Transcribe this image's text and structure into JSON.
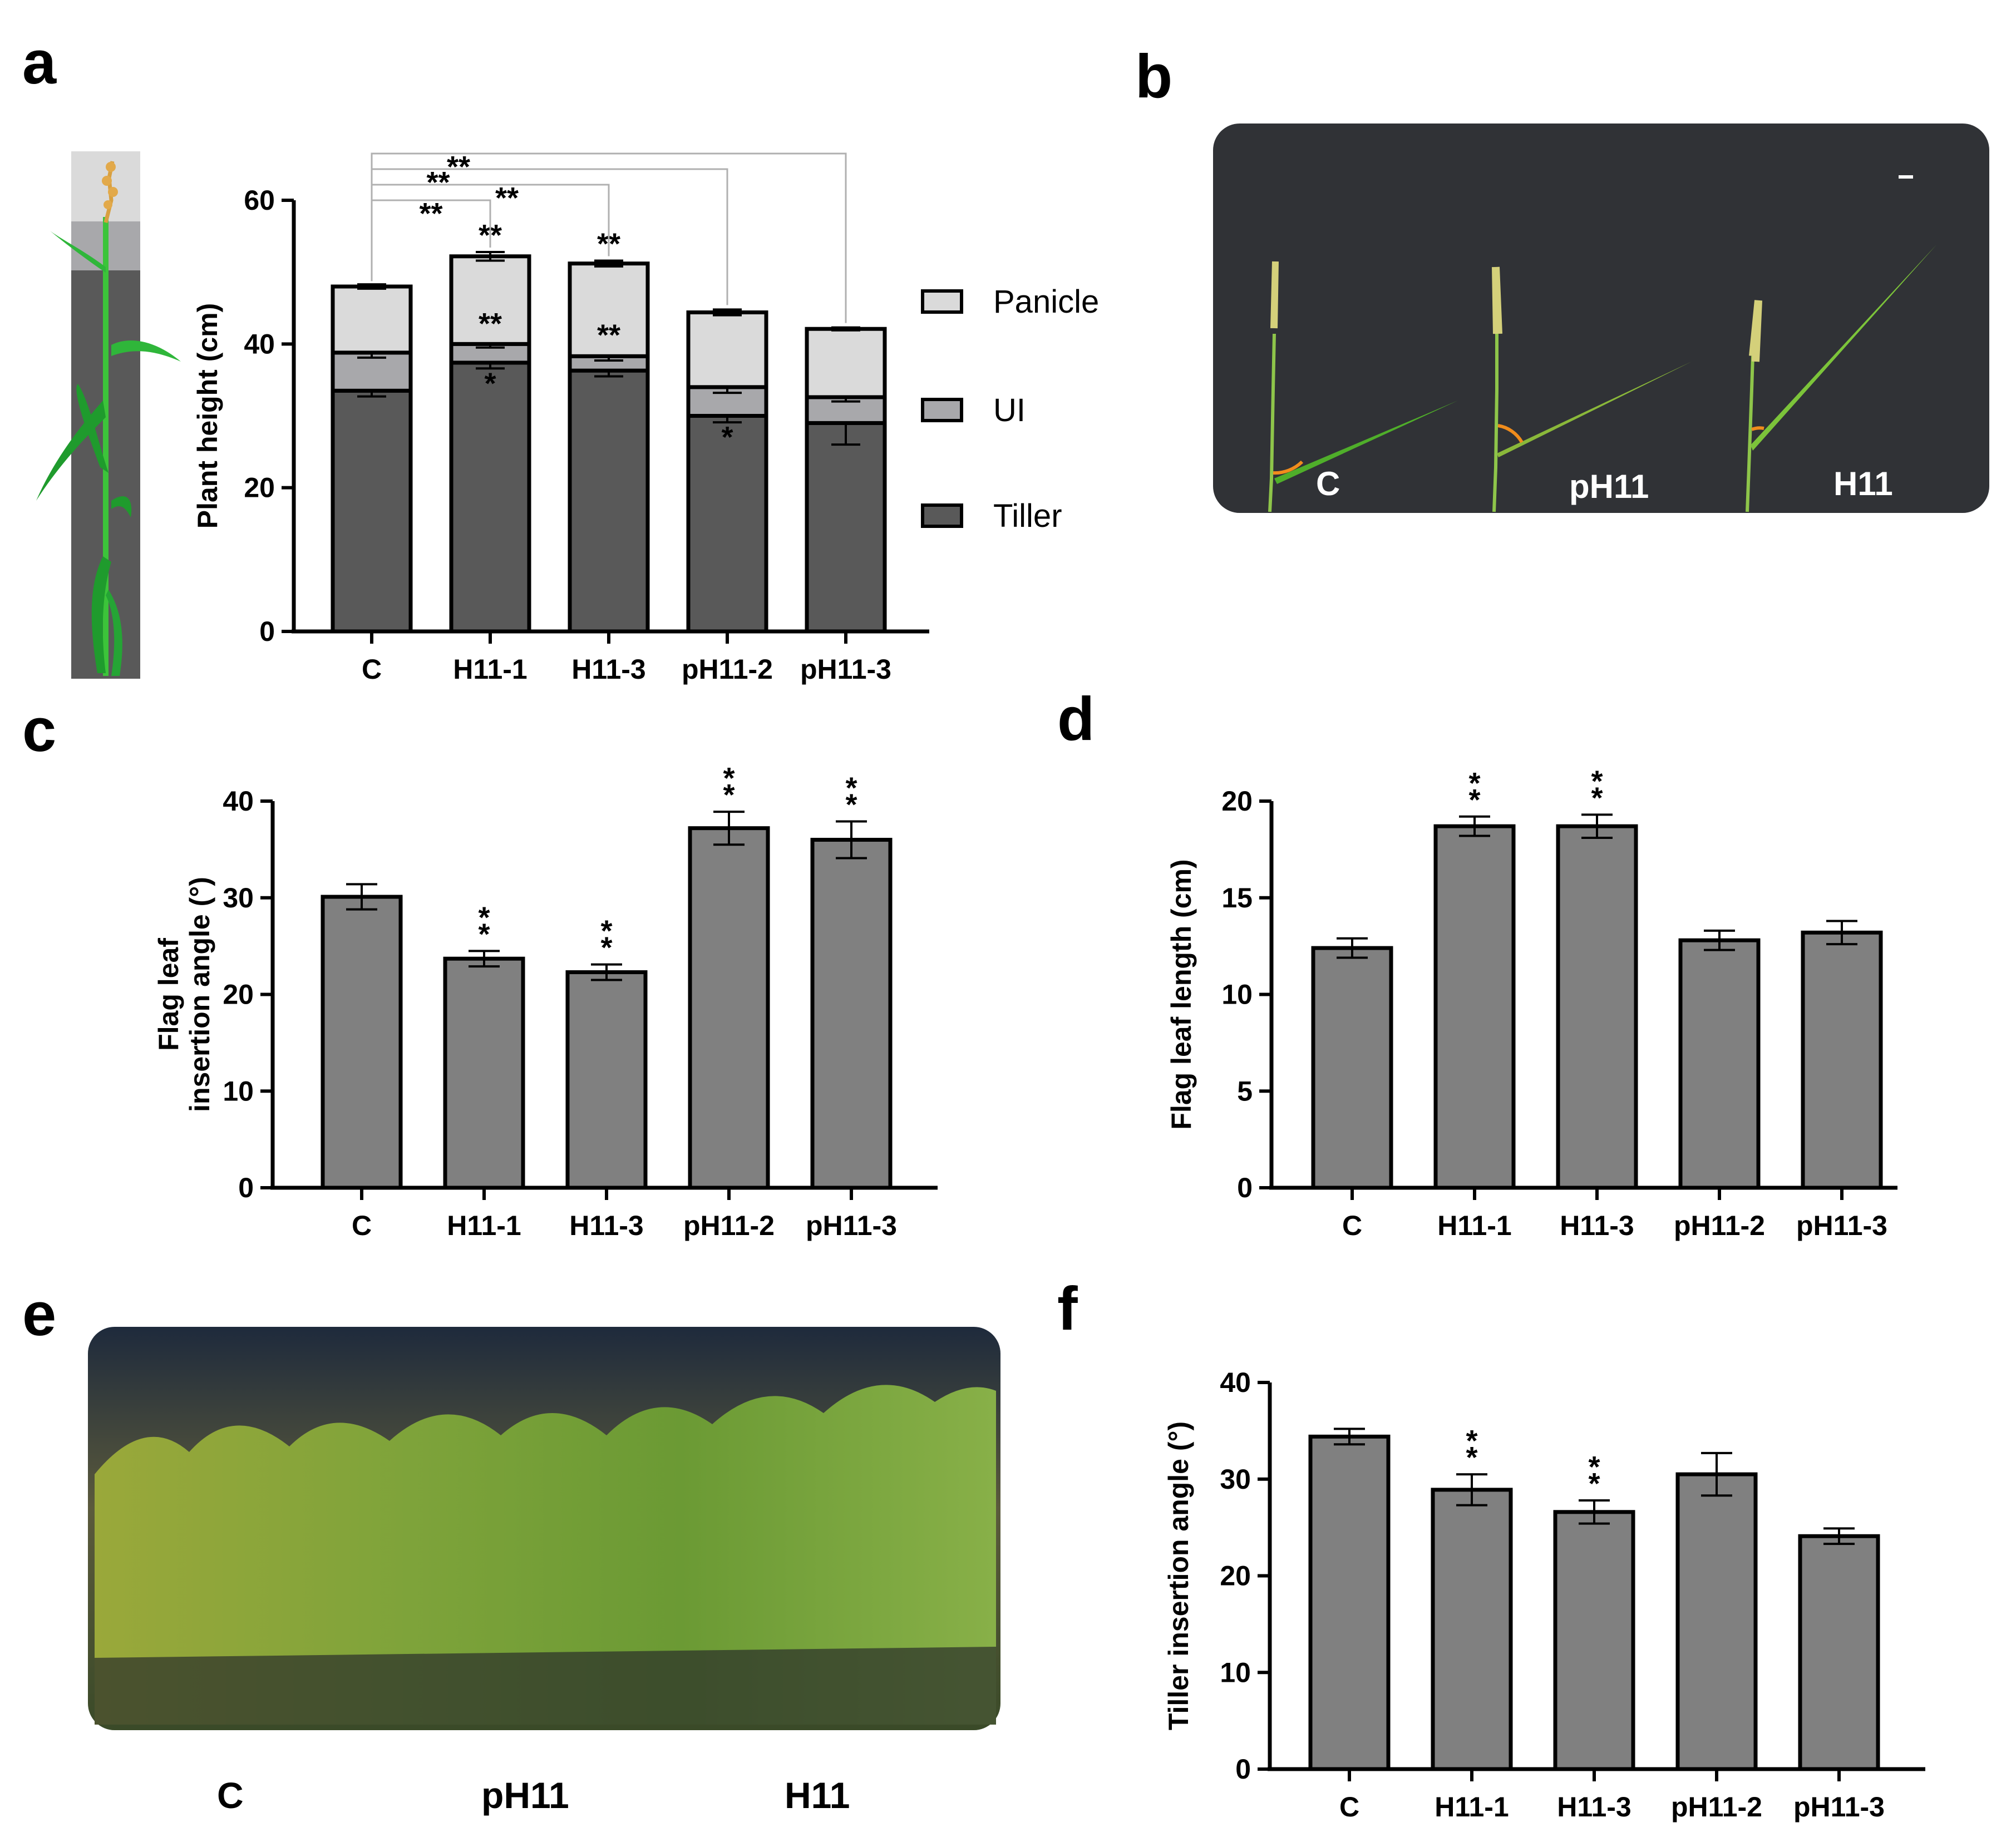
{
  "panels": {
    "a": "a",
    "b": "b",
    "c": "c",
    "d": "d",
    "e": "e",
    "f": "f"
  },
  "colors": {
    "tiller": "#595959",
    "ui": "#a8a8ab",
    "panicle": "#dadada",
    "bar": "#808080",
    "photo_bg": "#303236",
    "leaf": "#4fae2a",
    "angle": "#f08c1c"
  },
  "photo_b": {
    "labels": [
      "C",
      "pH11",
      "H11"
    ]
  },
  "photo_e": {
    "labels": [
      "C",
      "pH11",
      "H11"
    ]
  },
  "chart_data": [
    {
      "panel": "a",
      "type": "bar",
      "stacked": true,
      "categories": [
        "C",
        "H11-1",
        "H11-3",
        "pH11-2",
        "pH11-3"
      ],
      "ylabel": "Plant height (cm)",
      "ylim": [
        0,
        60
      ],
      "yticks": [
        0,
        20,
        40,
        60
      ],
      "series": [
        {
          "name": "Tiller",
          "values": [
            33.5,
            37.4,
            36.3,
            30,
            29
          ],
          "errors": [
            0.8,
            0.8,
            0.8,
            0.9,
            3
          ]
        },
        {
          "name": "UI",
          "values": [
            5.3,
            2.6,
            2,
            4,
            3.6
          ],
          "errors": [
            0.7,
            0.5,
            0.6,
            0.8,
            0.6
          ]
        },
        {
          "name": "Panicle",
          "values": [
            9.2,
            12.2,
            12.9,
            10.4,
            9.5
          ],
          "errors": [
            0.3,
            0.6,
            0.4,
            0.4,
            0.2
          ]
        }
      ],
      "legend": [
        "Panicle",
        "UI",
        "Tiller"
      ],
      "annotations": [
        {
          "category": "H11-1",
          "segment": "Tiller",
          "text": "*"
        },
        {
          "category": "H11-1",
          "segment": "UI",
          "text": "**"
        },
        {
          "category": "H11-1",
          "segment": "Panicle",
          "text": "**"
        },
        {
          "category": "H11-3",
          "segment": "UI",
          "text": "**"
        },
        {
          "category": "H11-3",
          "segment": "Panicle",
          "text": "**"
        },
        {
          "category": "pH11-2",
          "segment": "Tiller",
          "text": "*"
        }
      ],
      "brackets": [
        {
          "from": "C",
          "to": "H11-1",
          "text": "**"
        },
        {
          "from": "C",
          "to": "H11-3",
          "text": "**"
        },
        {
          "from": "C",
          "to": "pH11-2",
          "text": "**"
        },
        {
          "from": "C",
          "to": "pH11-3",
          "text": "**"
        }
      ]
    },
    {
      "panel": "c",
      "type": "bar",
      "categories": [
        "C",
        "H11-1",
        "H11-3",
        "pH11-2",
        "pH11-3"
      ],
      "values": [
        30.1,
        23.7,
        22.3,
        37.2,
        36
      ],
      "errors": [
        1.3,
        0.8,
        0.8,
        1.7,
        1.9
      ],
      "ylabel_lines": [
        "Flag leaf",
        "insertion angle (°)"
      ],
      "ylim": [
        0,
        40
      ],
      "yticks": [
        0,
        10,
        20,
        30,
        40
      ],
      "stars": [
        "",
        "**",
        "**",
        "**",
        "**"
      ]
    },
    {
      "panel": "d",
      "type": "bar",
      "categories": [
        "C",
        "H11-1",
        "H11-3",
        "pH11-2",
        "pH11-3"
      ],
      "values": [
        12.4,
        18.7,
        18.7,
        12.8,
        13.2
      ],
      "errors": [
        0.5,
        0.5,
        0.6,
        0.5,
        0.6
      ],
      "ylabel": "Flag leaf length (cm)",
      "ylim": [
        0,
        20
      ],
      "yticks": [
        0,
        5,
        10,
        15,
        20
      ],
      "stars": [
        "",
        "**",
        "**",
        "",
        ""
      ]
    },
    {
      "panel": "f",
      "type": "bar",
      "categories": [
        "C",
        "H11-1",
        "H11-3",
        "pH11-2",
        "pH11-3"
      ],
      "values": [
        34.4,
        28.9,
        26.6,
        30.5,
        24.1
      ],
      "errors": [
        0.8,
        1.6,
        1.2,
        2.2,
        0.8
      ],
      "ylabel": "Tiller insertion angle (°)",
      "ylim": [
        0,
        40
      ],
      "yticks": [
        0,
        10,
        20,
        30,
        40
      ],
      "stars": [
        "",
        "**",
        "**",
        "",
        ""
      ]
    }
  ]
}
